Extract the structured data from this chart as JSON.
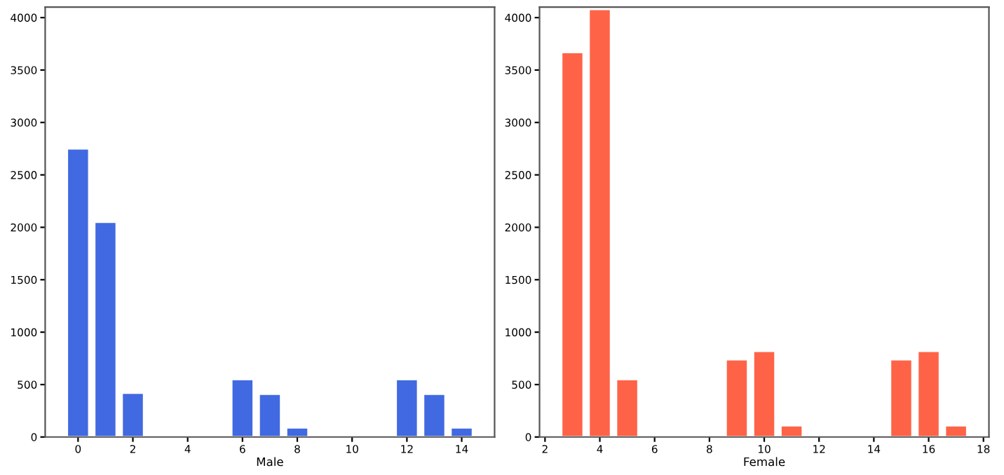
{
  "chart_data": [
    {
      "type": "bar",
      "xlabel": "Male",
      "x": [
        0,
        1,
        2,
        6,
        7,
        8,
        12,
        13,
        14
      ],
      "values": [
        2750,
        2050,
        420,
        550,
        410,
        90,
        550,
        410,
        90
      ],
      "color": "#4169e1",
      "xlim": [
        -1.2,
        15.2
      ],
      "xticks": [
        0,
        2,
        4,
        6,
        8,
        10,
        12,
        14
      ],
      "ylim": [
        0,
        4100
      ],
      "yticks": [
        0,
        500,
        1000,
        1500,
        2000,
        2500,
        3000,
        3500,
        4000
      ],
      "grid": false
    },
    {
      "type": "bar",
      "xlabel": "Female",
      "x": [
        3,
        4,
        5,
        9,
        10,
        11,
        15,
        16,
        17
      ],
      "values": [
        3670,
        4080,
        550,
        740,
        820,
        110,
        740,
        820,
        110
      ],
      "color": "#ff6347",
      "xlim": [
        1.8,
        18.2
      ],
      "xticks": [
        2,
        4,
        6,
        8,
        10,
        12,
        14,
        16,
        18
      ],
      "ylim": [
        0,
        4100
      ],
      "yticks": [
        0,
        500,
        1000,
        1500,
        2000,
        2500,
        3000,
        3500,
        4000
      ],
      "grid": false
    }
  ]
}
